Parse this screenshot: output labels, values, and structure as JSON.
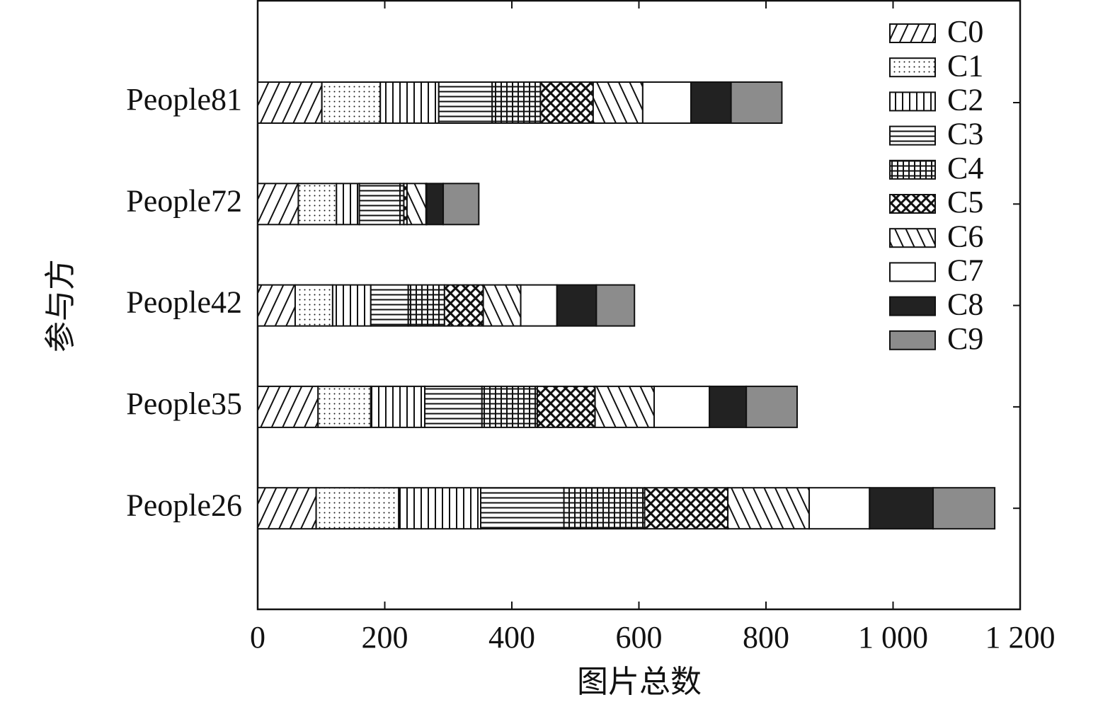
{
  "chart_data": {
    "type": "stacked-bar-horizontal",
    "xlabel": "图片总数",
    "ylabel": "参与方",
    "categories": [
      "People81",
      "People72",
      "People42",
      "People35",
      "People26"
    ],
    "xlim": [
      0,
      1200
    ],
    "xticks": [
      0,
      200,
      400,
      600,
      800,
      {
        "value": 1000,
        "label": "1 000"
      },
      {
        "value": 1200,
        "label": "1 200"
      }
    ],
    "grid": false,
    "legend": "upper-right",
    "series": [
      {
        "name": "C0",
        "color": "#ffffff",
        "pattern": "diag-right",
        "values": [
          101,
          64,
          59,
          95,
          92
        ]
      },
      {
        "name": "C1",
        "color": "#ffffff",
        "pattern": "dots",
        "values": [
          92,
          60,
          59,
          83,
          130
        ]
      },
      {
        "name": "C2",
        "color": "#ffffff",
        "pattern": "vertical",
        "values": [
          92,
          36,
          60,
          85,
          129
        ]
      },
      {
        "name": "C3",
        "color": "#ffffff",
        "pattern": "horizontal",
        "values": [
          84,
          64,
          59,
          90,
          131
        ]
      },
      {
        "name": "C4",
        "color": "#ffffff",
        "pattern": "grid",
        "values": [
          76,
          6,
          57,
          87,
          127
        ]
      },
      {
        "name": "C5",
        "color": "#ffffff",
        "pattern": "crosshatch",
        "values": [
          83,
          5,
          61,
          91,
          131
        ]
      },
      {
        "name": "C6",
        "color": "#ffffff",
        "pattern": "diag-left",
        "values": [
          78,
          30,
          59,
          93,
          128
        ]
      },
      {
        "name": "C7",
        "color": "#ffffff",
        "pattern": "none",
        "values": [
          76,
          1,
          57,
          87,
          95
        ]
      },
      {
        "name": "C8",
        "color": "#222222",
        "pattern": "none",
        "values": [
          63,
          26,
          62,
          58,
          100
        ]
      },
      {
        "name": "C9",
        "color": "#8c8c8c",
        "pattern": "none",
        "values": [
          80,
          56,
          60,
          80,
          97
        ]
      }
    ]
  }
}
